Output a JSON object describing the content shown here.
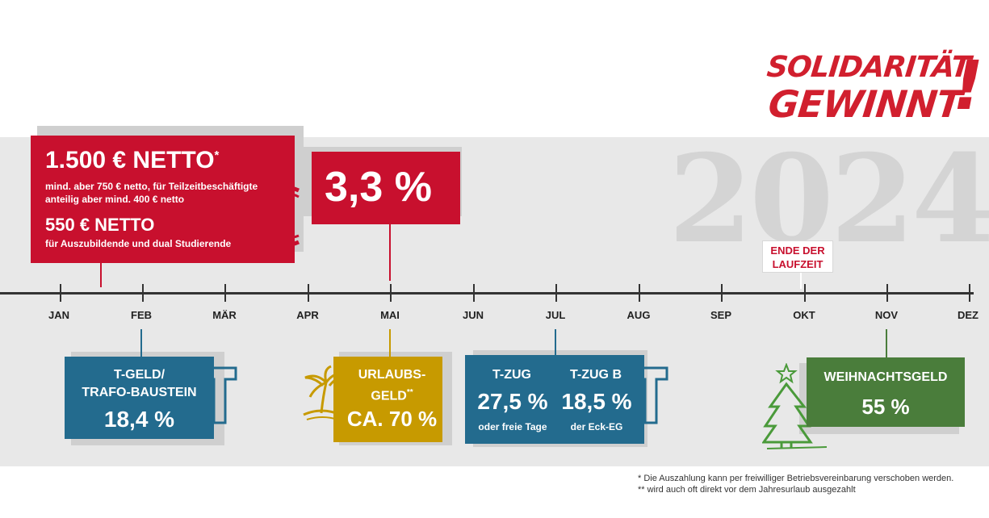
{
  "logo": {
    "line1": "SOLIDARITÄT",
    "line2": "GEWINNT",
    "mark": "!"
  },
  "year": "2024",
  "months": [
    "JAN",
    "FEB",
    "MÄR",
    "APR",
    "MAI",
    "JUN",
    "JUL",
    "AUG",
    "SEP",
    "OKT",
    "NOV",
    "DEZ"
  ],
  "inflation_bonus": {
    "amount": "1.500 € NETTO",
    "amount_mark": "*",
    "subline1": "mind. aber 750 € netto, für Teilzeitbeschäftigte",
    "subline2": "anteilig aber mind. 400 € netto",
    "amount2": "550 € NETTO",
    "subline3": "für Auszubildende und dual Studierende",
    "icon": "euro-icon"
  },
  "raise": {
    "value": "3,3 %"
  },
  "end_flag": {
    "line1": "ENDE DER",
    "line2": "LAUFZEIT"
  },
  "tgeld": {
    "line1": "T-GELD/",
    "line2": "TRAFO-BAUSTEIN",
    "value": "18,4 %",
    "icon": "t-letter-icon"
  },
  "urlaub": {
    "line1": "URLAUBS-",
    "line2": "GELD",
    "mark": "**",
    "value": "CA. 70 %",
    "icon": "palm-island-icon"
  },
  "tzug": {
    "a_title": "T-ZUG",
    "a_value": "27,5 %",
    "a_sub": "oder freie Tage",
    "b_title": "T-ZUG B",
    "b_value": "18,5 %",
    "b_sub": "der Eck-EG",
    "icon": "t-letter-icon"
  },
  "weihnacht": {
    "title": "WEIHNACHTSGELD",
    "value": "55 %",
    "icon": "christmas-tree-icon"
  },
  "footnotes": {
    "n1": "*   Die Auszahlung kann per freiwilliger Betriebsvereinbarung verschoben werden.",
    "n2": "** wird auch oft direkt vor dem Jahresurlaub ausgezahlt"
  },
  "colors": {
    "red": "#c8102e",
    "blue": "#236b8e",
    "gold": "#c79a00",
    "green": "#4a7d3b",
    "band": "#e8e8e8"
  }
}
